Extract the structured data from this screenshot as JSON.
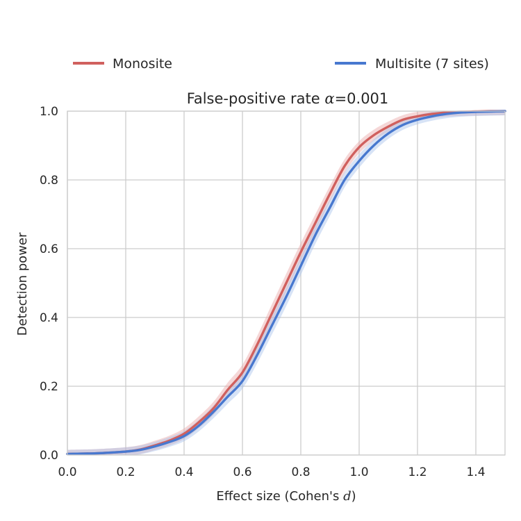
{
  "chart_data": {
    "type": "line",
    "title_prefix": "False-positive rate ",
    "title_symbol": "α",
    "title_suffix": "=0.001",
    "xlabel_prefix": "Effect size (Cohen's ",
    "xlabel_symbol": "d",
    "xlabel_suffix": ")",
    "ylabel": "Detection power",
    "xlim": [
      0.0,
      1.5
    ],
    "ylim": [
      0.0,
      1.0
    ],
    "xticks": [
      0.0,
      0.2,
      0.4,
      0.6,
      0.8,
      1.0,
      1.2,
      1.4
    ],
    "xtick_labels": [
      "0.0",
      "0.2",
      "0.4",
      "0.6",
      "0.8",
      "1.0",
      "1.2",
      "1.4"
    ],
    "yticks": [
      0.0,
      0.2,
      0.4,
      0.6,
      0.8,
      1.0
    ],
    "ytick_labels": [
      "0.0",
      "0.2",
      "0.4",
      "0.6",
      "0.8",
      "1.0"
    ],
    "grid": true,
    "legend_position": "top, above plot",
    "series": [
      {
        "name": "Monosite",
        "color": "#d0605e",
        "band_color": "#e8a7a6",
        "x": [
          0.0,
          0.1,
          0.2,
          0.25,
          0.3,
          0.35,
          0.4,
          0.45,
          0.5,
          0.55,
          0.6,
          0.65,
          0.7,
          0.75,
          0.8,
          0.85,
          0.9,
          0.95,
          1.0,
          1.05,
          1.1,
          1.15,
          1.2,
          1.25,
          1.3,
          1.35,
          1.4,
          1.45,
          1.5
        ],
        "y": [
          0.003,
          0.005,
          0.01,
          0.016,
          0.028,
          0.042,
          0.062,
          0.095,
          0.135,
          0.19,
          0.24,
          0.32,
          0.41,
          0.5,
          0.59,
          0.675,
          0.76,
          0.84,
          0.895,
          0.93,
          0.955,
          0.975,
          0.985,
          0.992,
          0.996,
          0.998,
          0.999,
          1.0,
          1.0
        ]
      },
      {
        "name": "Multisite (7 sites)",
        "color": "#4878cf",
        "band_color": "#a7c0ea",
        "x": [
          0.0,
          0.1,
          0.2,
          0.25,
          0.3,
          0.35,
          0.4,
          0.45,
          0.5,
          0.55,
          0.6,
          0.65,
          0.7,
          0.75,
          0.8,
          0.85,
          0.9,
          0.95,
          1.0,
          1.05,
          1.1,
          1.15,
          1.2,
          1.25,
          1.3,
          1.35,
          1.4,
          1.45,
          1.5
        ],
        "y": [
          0.003,
          0.005,
          0.01,
          0.015,
          0.025,
          0.038,
          0.055,
          0.085,
          0.125,
          0.17,
          0.215,
          0.29,
          0.375,
          0.46,
          0.55,
          0.64,
          0.72,
          0.8,
          0.855,
          0.9,
          0.935,
          0.96,
          0.975,
          0.985,
          0.992,
          0.996,
          0.998,
          0.999,
          1.0
        ]
      }
    ]
  }
}
